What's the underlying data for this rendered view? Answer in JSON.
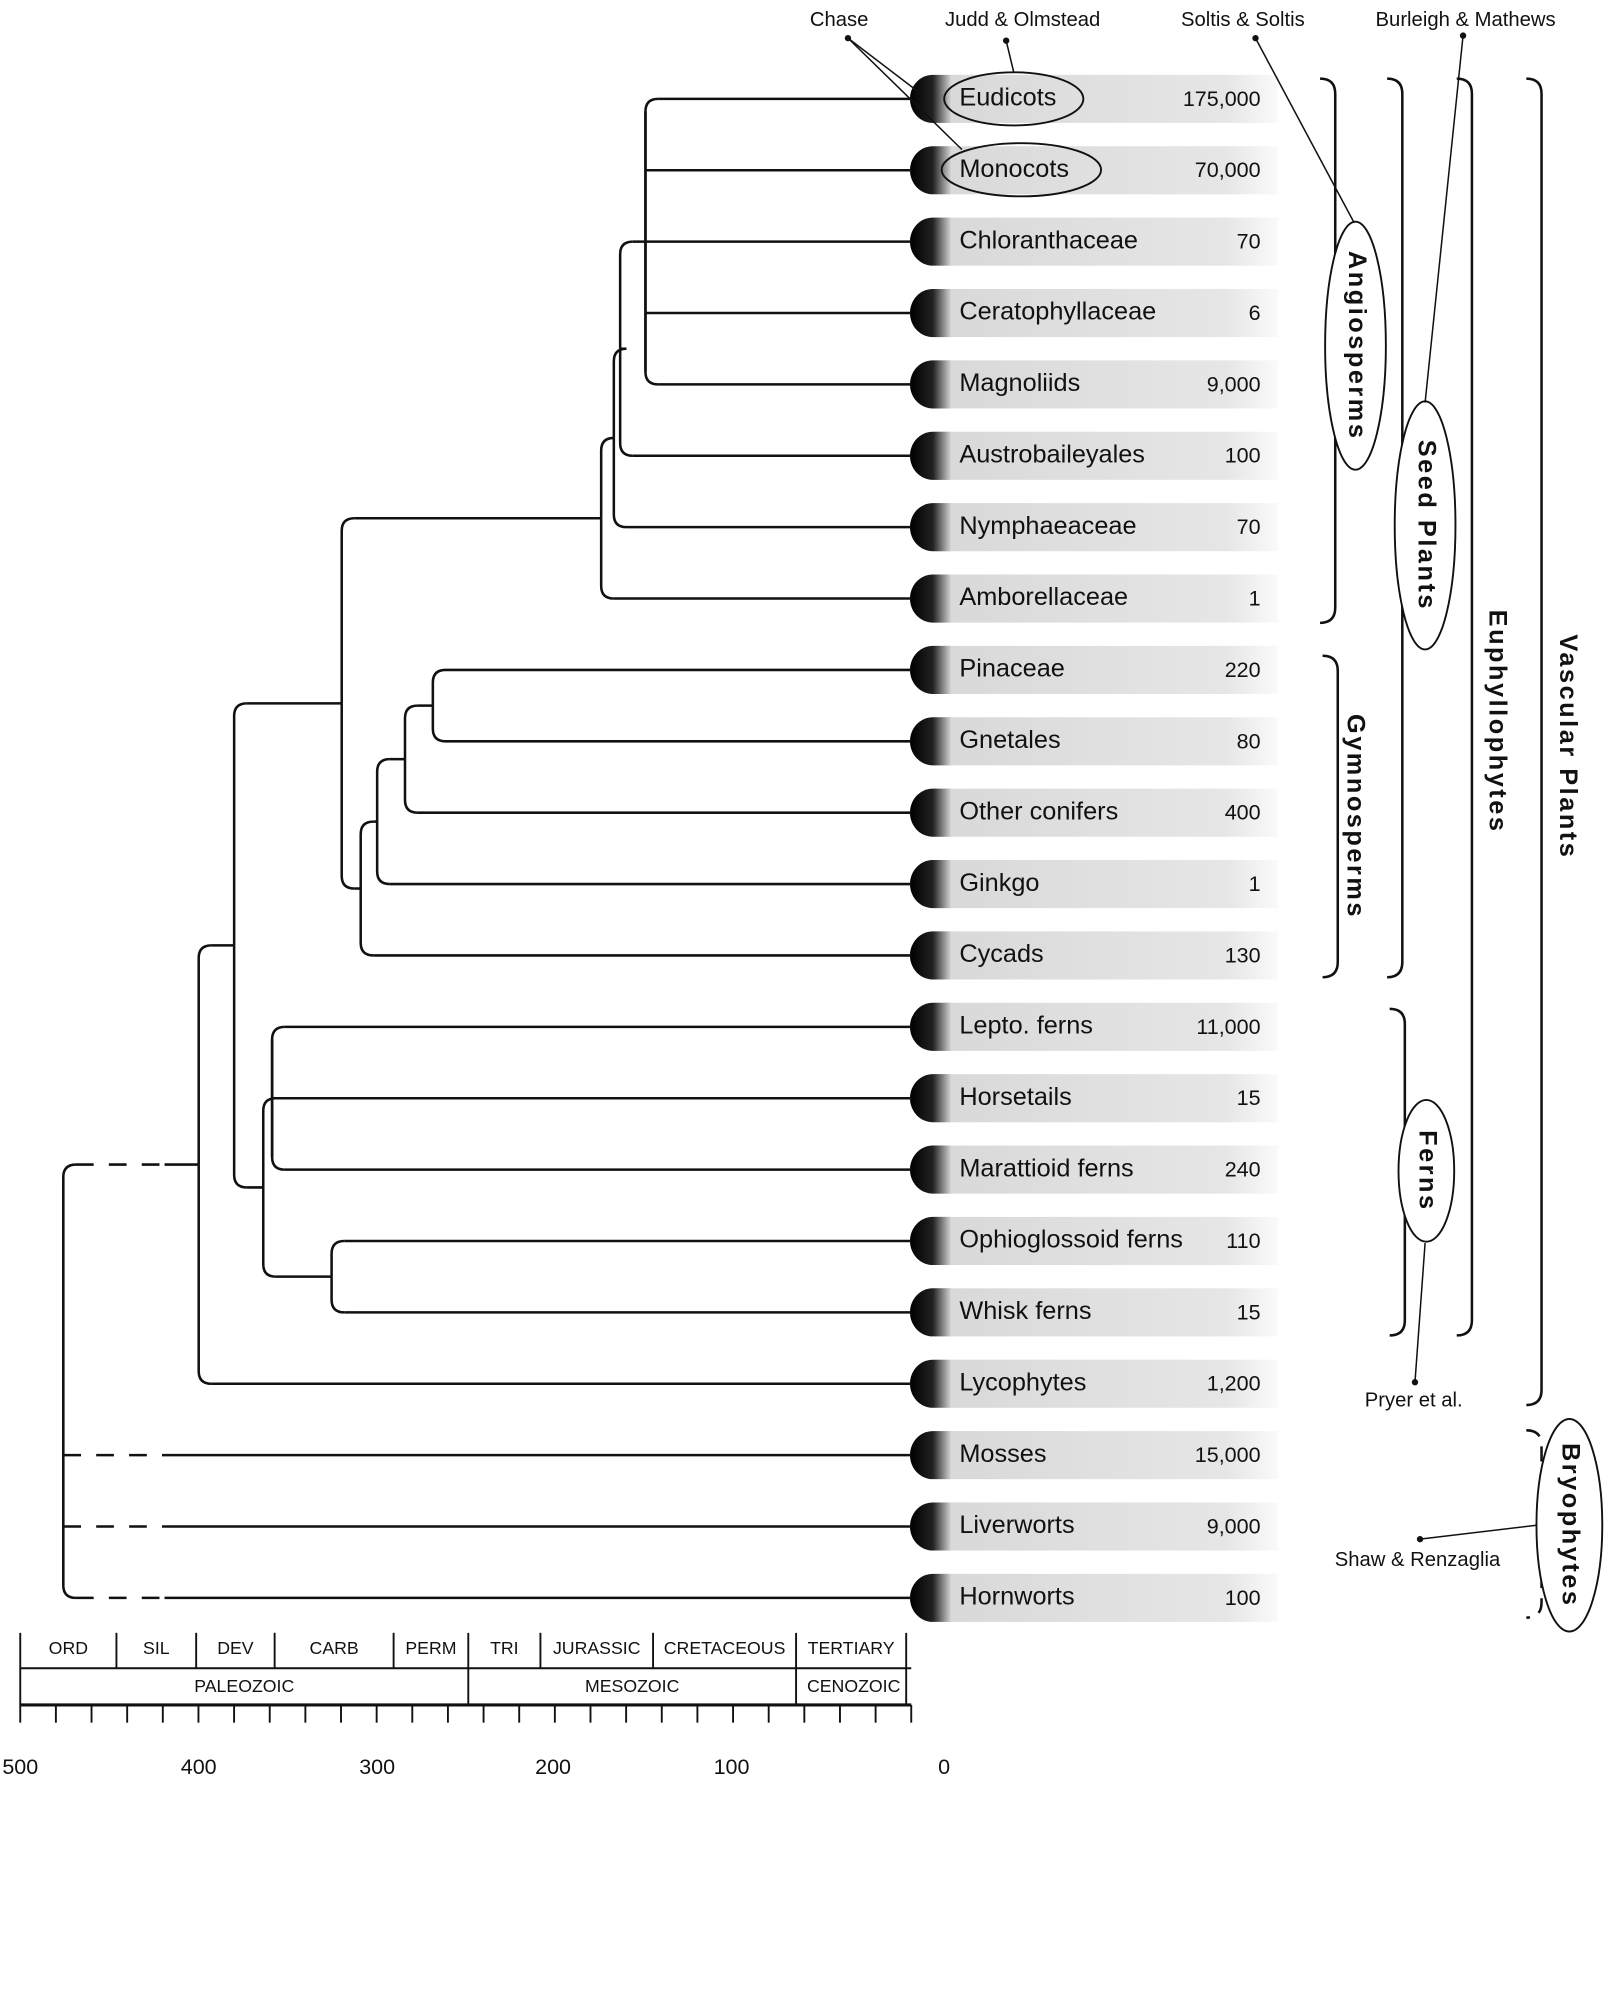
{
  "taxa": [
    {
      "name": "Eudicots",
      "species": "175,000"
    },
    {
      "name": "Monocots",
      "species": "70,000"
    },
    {
      "name": "Chloranthaceae",
      "species": "70"
    },
    {
      "name": "Ceratophyllaceae",
      "species": "6"
    },
    {
      "name": "Magnoliids",
      "species": "9,000"
    },
    {
      "name": "Austrobaileyales",
      "species": "100"
    },
    {
      "name": "Nymphaeaceae",
      "species": "70"
    },
    {
      "name": "Amborellaceae",
      "species": "1"
    },
    {
      "name": "Pinaceae",
      "species": "220"
    },
    {
      "name": "Gnetales",
      "species": "80"
    },
    {
      "name": "Other conifers",
      "species": "400"
    },
    {
      "name": "Ginkgo",
      "species": "1"
    },
    {
      "name": "Cycads",
      "species": "130"
    },
    {
      "name": "Lepto. ferns",
      "species": "11,000"
    },
    {
      "name": "Horsetails",
      "species": "15"
    },
    {
      "name": "Marattioid ferns",
      "species": "240"
    },
    {
      "name": "Ophioglossoid ferns",
      "species": "110"
    },
    {
      "name": "Whisk ferns",
      "species": "15"
    },
    {
      "name": "Lycophytes",
      "species": "1,200"
    },
    {
      "name": "Mosses",
      "species": "15,000"
    },
    {
      "name": "Liverworts",
      "species": "9,000"
    },
    {
      "name": "Hornworts",
      "species": "100"
    }
  ],
  "groups": [
    "Angiosperms",
    "Gymnosperms",
    "Seed Plants",
    "Ferns",
    "Euphyllophytes",
    "Vascular Plants",
    "Bryophytes"
  ],
  "citations": [
    "Chase",
    "Judd & Olmstead",
    "Soltis & Soltis",
    "Burleigh & Mathews",
    "Pryer et al.",
    "Shaw & Renzaglia"
  ],
  "timescale": {
    "periods": [
      "ORD",
      "SIL",
      "DEV",
      "CARB",
      "PERM",
      "TRI",
      "JURASSIC",
      "CRETACEOUS",
      "TERTIARY"
    ],
    "eras": [
      "PALEOZOIC",
      "MESOZOIC",
      "CENOZOIC"
    ],
    "ticks": [
      500,
      400,
      300,
      200,
      100,
      0
    ]
  }
}
